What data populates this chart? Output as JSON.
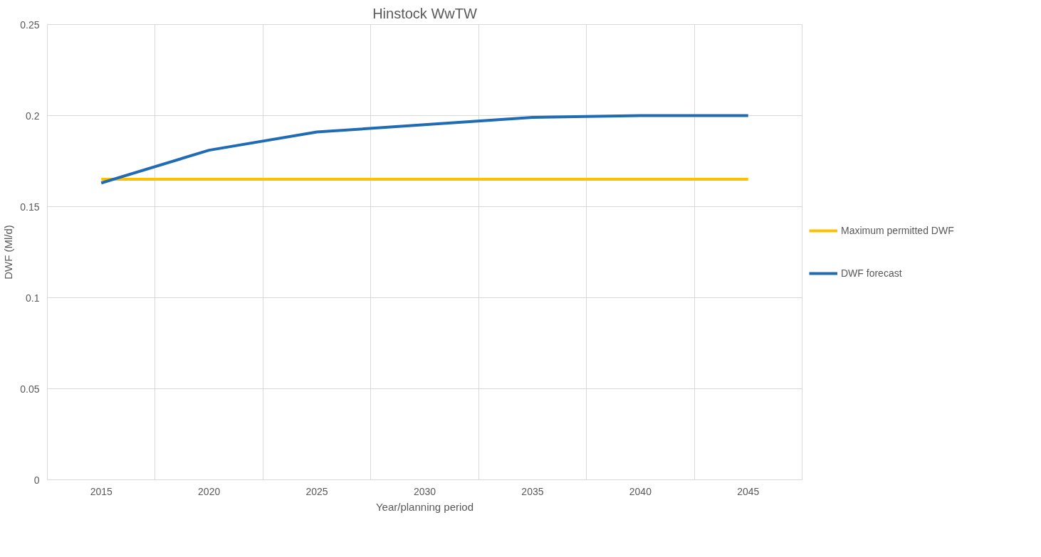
{
  "chart_data": {
    "type": "line",
    "title": "Hinstock WwTW",
    "xlabel": "Year/planning period",
    "ylabel": "DWF (Ml/d)",
    "categories": [
      "2015",
      "2020",
      "2025",
      "2030",
      "2035",
      "2040",
      "2045"
    ],
    "series": [
      {
        "name": "Maximum permitted DWF",
        "color": "#ffc000",
        "values": [
          0.165,
          0.165,
          0.165,
          0.165,
          0.165,
          0.165,
          0.165
        ]
      },
      {
        "name": "DWF forecast",
        "color": "#1f6bb5",
        "values": [
          0.163,
          0.181,
          0.191,
          0.195,
          0.199,
          0.2,
          0.2
        ]
      }
    ],
    "ylim": [
      0,
      0.25
    ],
    "yticks": [
      0,
      0.05,
      0.1,
      0.15,
      0.2,
      0.25
    ],
    "grid": true,
    "legend": "right",
    "marker": "none",
    "line_style": "solid"
  }
}
